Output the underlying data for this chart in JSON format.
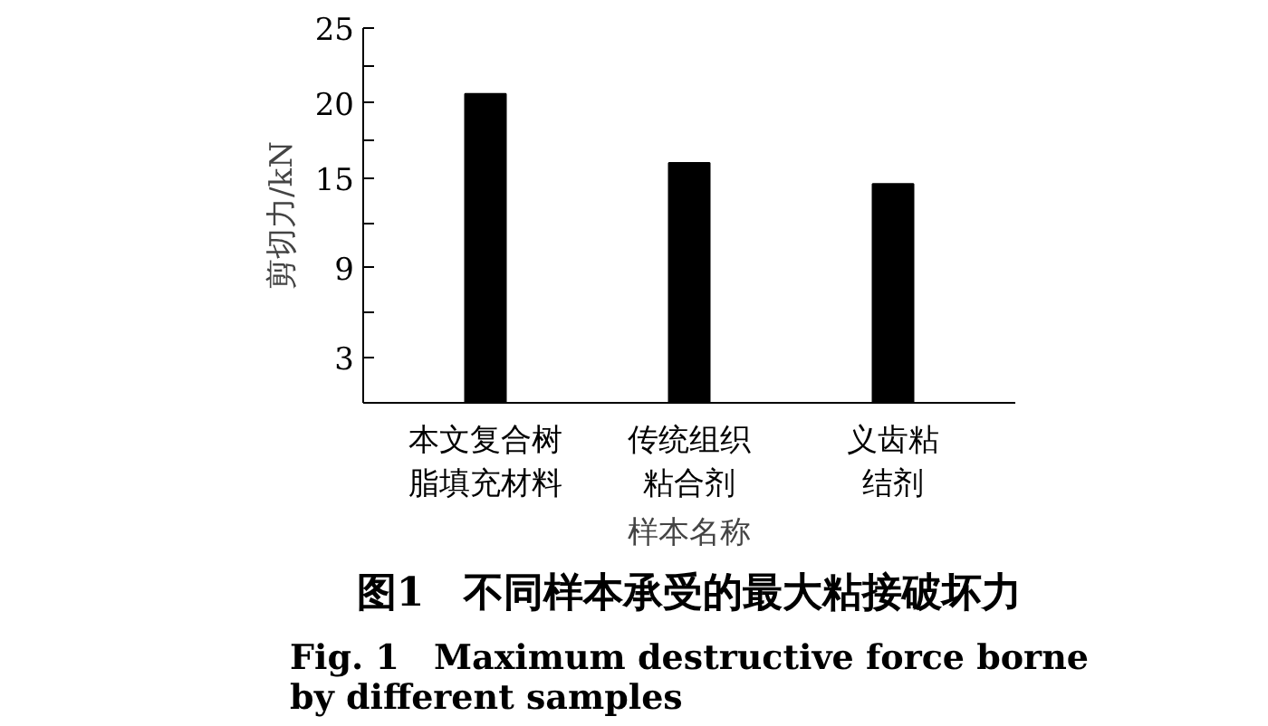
{
  "chart_data": {
    "type": "bar",
    "title": "图1　不同样本承受的最大粘接破坏力",
    "subtitle": "Fig. 1　Maximum destructive force borne\nby different samples",
    "xlabel": "样本名称",
    "ylabel": "剪切力/kN",
    "categories": [
      "本文复合树脂填充材料",
      "传统组织粘合剂",
      "义齿粘结剂"
    ],
    "values": [
      20.6,
      16.0,
      14.6
    ],
    "color": "#000000",
    "ylim": [
      0,
      25
    ],
    "yticks": [
      3,
      {
        "value": 6,
        "label": null
      },
      9,
      {
        "value": 12,
        "label": null
      },
      15,
      {
        "value": 17.5,
        "label": null
      },
      20,
      {
        "value": 22.5,
        "label": null
      },
      25
    ],
    "grid": false
  }
}
